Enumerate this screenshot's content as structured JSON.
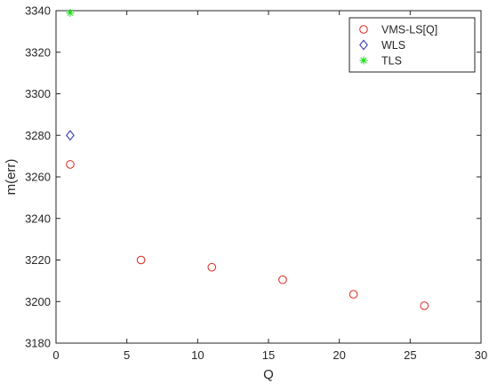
{
  "chart_data": {
    "type": "scatter",
    "title": "",
    "xlabel": "Q",
    "ylabel": "m(err)",
    "xlim": [
      0,
      30
    ],
    "ylim": [
      3180,
      3340
    ],
    "xticks": [
      0,
      5,
      10,
      15,
      20,
      25,
      30
    ],
    "yticks": [
      3180,
      3200,
      3220,
      3240,
      3260,
      3280,
      3300,
      3320,
      3340
    ],
    "grid": false,
    "legend_position": "top-right",
    "series": [
      {
        "name": "VMS-LS[Q]",
        "marker": "circle",
        "color": "#e0261c",
        "x": [
          1,
          6,
          11,
          16,
          21,
          26
        ],
        "y": [
          3266,
          3220,
          3216.5,
          3210.5,
          3203.5,
          3198
        ]
      },
      {
        "name": "WLS",
        "marker": "diamond",
        "color": "#2a2fb0",
        "x": [
          1
        ],
        "y": [
          3280
        ]
      },
      {
        "name": "TLS",
        "marker": "asterisk",
        "color": "#22dd22",
        "x": [
          1
        ],
        "y": [
          3339
        ]
      }
    ]
  }
}
